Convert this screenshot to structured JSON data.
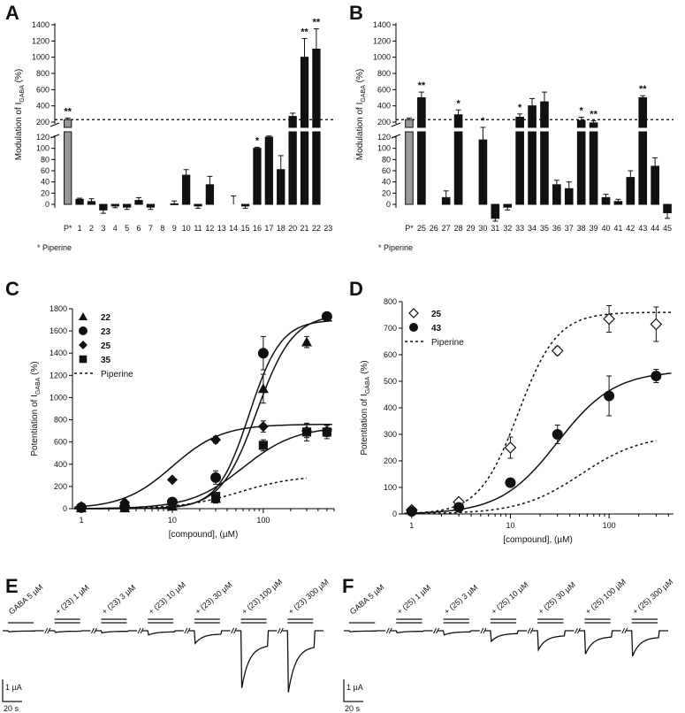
{
  "chart_data": [
    {
      "panel": "A",
      "type": "bar",
      "ylabel": "Modulation of I",
      "ylabel_sub": "GABA",
      "ylabel_post": " (%)",
      "ylim_low": [
        0,
        120
      ],
      "ylim_high": [
        200,
        1400
      ],
      "upper_ticks": [
        "1400",
        "1200",
        "1000",
        "800",
        "600",
        "400",
        "200"
      ],
      "lower_ticks": [
        "120",
        "100",
        "80",
        "60",
        "40",
        "20",
        "0"
      ],
      "reference_line": 230,
      "footnote": "* Piperine",
      "categories": [
        "P*",
        "1",
        "2",
        "3",
        "4",
        "5",
        "6",
        "7",
        "8",
        "9",
        "10",
        "11",
        "12",
        "13",
        "14",
        "15",
        "16",
        "17",
        "18",
        "20",
        "21",
        "22",
        "23"
      ],
      "values": [
        230,
        9,
        5,
        -10,
        -3,
        -5,
        7,
        -5,
        0,
        1,
        52,
        -3,
        35,
        0,
        0,
        -3,
        100,
        120,
        62,
        270,
        1000,
        1100,
        0
      ],
      "errors": [
        20,
        2,
        5,
        6,
        3,
        4,
        5,
        4,
        0,
        5,
        10,
        4,
        15,
        0,
        15,
        4,
        2,
        2,
        25,
        40,
        230,
        250,
        0
      ],
      "significance": [
        "**",
        "",
        "",
        "",
        "",
        "",
        "",
        "",
        "",
        "",
        "",
        "",
        "",
        "",
        "",
        "",
        "*",
        "",
        "",
        "",
        "**",
        "**",
        ""
      ]
    },
    {
      "panel": "B",
      "type": "bar",
      "ylabel": "Modulation of I",
      "ylabel_sub": "GABA",
      "ylabel_post": " (%)",
      "ylim_low": [
        0,
        120
      ],
      "ylim_high": [
        200,
        1400
      ],
      "upper_ticks": [
        "1400",
        "1200",
        "1000",
        "800",
        "600",
        "400",
        "200"
      ],
      "lower_ticks": [
        "120",
        "100",
        "80",
        "60",
        "40",
        "20",
        "0"
      ],
      "reference_line": 230,
      "footnote": "* Piperine",
      "categories": [
        "P*",
        "25",
        "26",
        "27",
        "28",
        "29",
        "30",
        "31",
        "32",
        "33",
        "34",
        "35",
        "36",
        "37",
        "38",
        "39",
        "40",
        "41",
        "42",
        "43",
        "44",
        "45"
      ],
      "values": [
        230,
        500,
        0,
        12,
        290,
        0,
        115,
        -25,
        -5,
        260,
        400,
        450,
        35,
        28,
        220,
        190,
        12,
        5,
        48,
        500,
        68,
        -15
      ],
      "errors": [
        20,
        70,
        0,
        12,
        60,
        0,
        20,
        20,
        5,
        40,
        90,
        120,
        8,
        12,
        40,
        25,
        6,
        4,
        12,
        25,
        15,
        10
      ],
      "significance": [
        "",
        "**",
        "",
        "",
        "*",
        "",
        "*",
        "",
        "",
        "*",
        "",
        "",
        "",
        "",
        "*",
        "**",
        "",
        "",
        "",
        "**",
        "",
        ""
      ]
    },
    {
      "panel": "C",
      "type": "scatter",
      "xlabel": "[compound], (µM)",
      "ylabel": "Potentiation of I",
      "ylabel_sub": "GABA",
      "ylabel_post": " (%)",
      "xscale": "log",
      "xlim": [
        0.8,
        600
      ],
      "ylim": [
        0,
        1800
      ],
      "xticks": [
        "1",
        "10",
        "100"
      ],
      "yticks": [
        "0",
        "200",
        "400",
        "600",
        "800",
        "1000",
        "1200",
        "1400",
        "1600",
        "1800"
      ],
      "legend_position": "top-left",
      "series": [
        {
          "name": "22",
          "marker": "triangle",
          "x": [
            1,
            3,
            10,
            30,
            100,
            300
          ],
          "y": [
            5,
            5,
            20,
            90,
            1080,
            1500
          ],
          "err": [
            10,
            10,
            15,
            40,
            130,
            50
          ],
          "fit": {
            "bottom": 0,
            "top": 1750,
            "ec50": 85,
            "hill": 2.2
          }
        },
        {
          "name": "23",
          "marker": "circle",
          "x": [
            1,
            3,
            10,
            30,
            100,
            500
          ],
          "y": [
            10,
            15,
            60,
            280,
            1400,
            1730
          ],
          "err": [
            10,
            10,
            20,
            60,
            150,
            30
          ],
          "fit": {
            "bottom": 0,
            "top": 1700,
            "ec50": 70,
            "hill": 2.5
          }
        },
        {
          "name": "25",
          "marker": "diamond",
          "x": [
            1,
            3,
            10,
            30,
            100,
            300,
            500
          ],
          "y": [
            20,
            55,
            260,
            620,
            740,
            700,
            700
          ],
          "err": [
            10,
            10,
            20,
            30,
            50,
            60,
            50
          ],
          "fit": {
            "bottom": 0,
            "top": 760,
            "ec50": 10,
            "hill": 1.6
          }
        },
        {
          "name": "35",
          "marker": "square",
          "x": [
            30,
            100,
            300,
            500
          ],
          "y": [
            110,
            570,
            690,
            690
          ],
          "err": [
            20,
            50,
            80,
            60
          ],
          "fit": {
            "bottom": 0,
            "top": 740,
            "ec50": 60,
            "hill": 1.5
          }
        },
        {
          "name": "Piperine",
          "marker": "none",
          "dashed": true,
          "fit": {
            "bottom": 0,
            "top": 300,
            "ec50": 55,
            "hill": 1.4
          },
          "fit_range": [
            1,
            300
          ]
        }
      ]
    },
    {
      "panel": "D",
      "type": "scatter",
      "xlabel": "[compound], (µM)",
      "ylabel": "Potentiation of I",
      "ylabel_sub": "GABA",
      "ylabel_post": " (%)",
      "xscale": "log",
      "xlim": [
        0.8,
        450
      ],
      "ylim": [
        0,
        800
      ],
      "xticks": [
        "1",
        "10",
        "100"
      ],
      "yticks": [
        "0",
        "100",
        "200",
        "300",
        "400",
        "500",
        "600",
        "700",
        "800"
      ],
      "legend_position": "top-left",
      "series": [
        {
          "name": "25",
          "marker": "open-diamond",
          "dashed": true,
          "x": [
            1,
            3,
            10,
            30,
            100,
            300
          ],
          "y": [
            15,
            45,
            250,
            615,
            735,
            715
          ],
          "err": [
            8,
            10,
            40,
            15,
            50,
            65
          ],
          "fit": {
            "bottom": 0,
            "top": 760,
            "ec50": 12,
            "hill": 2.2
          }
        },
        {
          "name": "43",
          "marker": "circle",
          "x": [
            1,
            3,
            10,
            30,
            100,
            300
          ],
          "y": [
            10,
            25,
            118,
            300,
            445,
            520
          ],
          "err": [
            8,
            8,
            10,
            35,
            75,
            25
          ],
          "fit": {
            "bottom": 0,
            "top": 540,
            "ec50": 30,
            "hill": 1.5
          }
        },
        {
          "name": "Piperine",
          "marker": "none",
          "dashed": true,
          "fit": {
            "bottom": 0,
            "top": 300,
            "ec50": 52,
            "hill": 1.4
          },
          "fit_range": [
            1,
            300
          ]
        }
      ]
    }
  ],
  "panels": {
    "A": {
      "letter": "A"
    },
    "B": {
      "letter": "B"
    },
    "C": {
      "letter": "C"
    },
    "D": {
      "letter": "D"
    },
    "E": {
      "letter": "E",
      "labels": [
        "GABA 5 µM",
        "+ (23) 1 µM",
        "+ (23) 3 µM",
        "+ (23) 10 µM",
        "+ (23) 30 µM",
        "+ (23) 100 µM",
        "+ (23) 300 µM"
      ],
      "peaks": [
        0.05,
        0.08,
        0.1,
        0.2,
        0.6,
        2.7,
        2.9
      ],
      "scale_current": "1 µA",
      "scale_time": "20 s"
    },
    "F": {
      "letter": "F",
      "labels": [
        "GABA 5 µM",
        "+ (25) 1 µM",
        "+ (25) 3 µM",
        "+ (25) 10 µM",
        "+ (25) 30 µM",
        "+ (25) 100 µM",
        "+ (25) 300 µM"
      ],
      "peaks": [
        0.05,
        0.1,
        0.2,
        0.5,
        0.9,
        1.1,
        1.2
      ],
      "scale_current": "1 µA",
      "scale_time": "20 s"
    }
  }
}
